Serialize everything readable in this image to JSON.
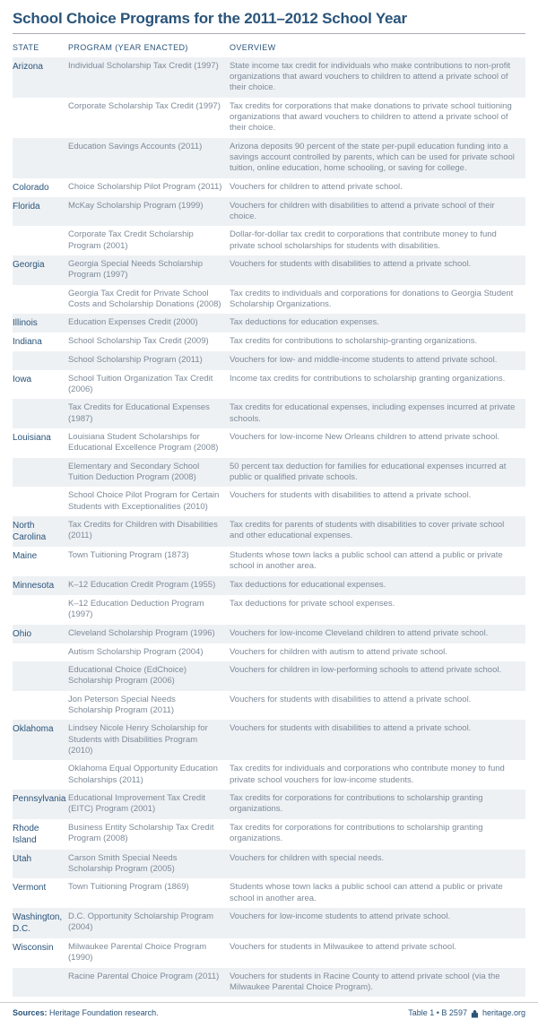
{
  "title": "School Choice Programs for the 2011–2012 School Year",
  "headers": {
    "state": "STATE",
    "program": "PROGRAM (YEAR ENACTED)",
    "overview": "OVERVIEW"
  },
  "colors": {
    "heading": "#2a547a",
    "bodytext": "#7d8a99",
    "shade": "#eef1f4"
  },
  "rows": [
    {
      "state": "Arizona",
      "shade": true,
      "program": "Individual Scholarship Tax Credit (1997)",
      "overview": "State income tax credit for individuals who make contributions to non-profit organizations that award vouchers to children to attend a private school of their choice."
    },
    {
      "state": "",
      "shade": false,
      "program": "Corporate Scholarship Tax Credit (1997)",
      "overview": "Tax credits for corporations that make donations to private school tuitioning organizations that award vouchers to children to attend a private school of their choice."
    },
    {
      "state": "",
      "shade": true,
      "program": "Education Savings Accounts (2011)",
      "overview": "Arizona deposits 90 percent of the state per-pupil education funding into a savings account controlled by parents, which can be used for private school tuition, online education, home schooling, or saving for college."
    },
    {
      "state": "Colorado",
      "shade": false,
      "program": "Choice Scholarship Pilot Program (2011)",
      "overview": "Vouchers for children to attend private school."
    },
    {
      "state": "Florida",
      "shade": true,
      "program": "McKay Scholarship Program (1999)",
      "overview": "Vouchers for children with disabilities to attend a private school of their choice."
    },
    {
      "state": "",
      "shade": false,
      "program": "Corporate Tax Credit Scholarship Program (2001)",
      "overview": "Dollar-for-dollar tax credit to corporations that contribute money to fund private school scholarships for students with disabilities."
    },
    {
      "state": "Georgia",
      "shade": true,
      "program": "Georgia Special Needs Scholarship Program (1997)",
      "overview": "Vouchers for students with disabilities to attend a private school."
    },
    {
      "state": "",
      "shade": false,
      "program": "Georgia Tax Credit for Private School Costs and Scholarship Donations (2008)",
      "overview": "Tax credits to individuals and corporations for donations to Georgia Student Scholarship Organizations."
    },
    {
      "state": "Illinois",
      "shade": true,
      "program": "Education Expenses Credit (2000)",
      "overview": "Tax deductions for education expenses."
    },
    {
      "state": "Indiana",
      "shade": false,
      "program": "School Scholarship Tax Credit (2009)",
      "overview": "Tax credits for contributions to scholarship-granting organizations."
    },
    {
      "state": "",
      "shade": true,
      "program": "School Scholarship Program (2011)",
      "overview": "Vouchers for low- and middle-income students to attend private school."
    },
    {
      "state": "Iowa",
      "shade": false,
      "program": "School Tuition Organization Tax Credit (2006)",
      "overview": "Income tax credits for contributions to scholarship granting organizations."
    },
    {
      "state": "",
      "shade": true,
      "program": "Tax Credits for Educational Expenses (1987)",
      "overview": "Tax credits for educational expenses, including expenses incurred at private schools."
    },
    {
      "state": "Louisiana",
      "shade": false,
      "program": "Louisiana Student Scholarships for Educational Excellence Program (2008)",
      "overview": "Vouchers for low-income New Orleans children to attend private school."
    },
    {
      "state": "",
      "shade": true,
      "program": "Elementary and Secondary School Tuition Deduction Program (2008)",
      "overview": "50 percent tax deduction for families for educational expenses incurred at public or qualified private schools."
    },
    {
      "state": "",
      "shade": false,
      "program": "School Choice Pilot Program for Certain Students with Exceptionalities (2010)",
      "overview": "Vouchers for students with disabilities to attend a private school."
    },
    {
      "state": "North Carolina",
      "shade": true,
      "program": "Tax Credits for Children with Disabilities (2011)",
      "overview": "Tax credits for parents of students with disabilities to cover private school and other educational expenses."
    },
    {
      "state": "Maine",
      "shade": false,
      "program": "Town Tuitioning Program (1873)",
      "overview": "Students whose town lacks a public school can attend a public or private school in another area."
    },
    {
      "state": "Minnesota",
      "shade": true,
      "program": "K–12 Education Credit Program (1955)",
      "overview": "Tax deductions for educational expenses."
    },
    {
      "state": "",
      "shade": false,
      "program": "K–12 Education Deduction Program (1997)",
      "overview": "Tax deductions for private school expenses."
    },
    {
      "state": "Ohio",
      "shade": true,
      "program": "Cleveland Scholarship Program (1996)",
      "overview": "Vouchers for low-income Cleveland children to attend private school."
    },
    {
      "state": "",
      "shade": false,
      "program": "Autism Scholarship Program (2004)",
      "overview": "Vouchers for children with autism to attend private school."
    },
    {
      "state": "",
      "shade": true,
      "program": "Educational Choice (EdChoice) Scholarship Program (2006)",
      "overview": "Vouchers for children in low-performing schools to attend private school."
    },
    {
      "state": "",
      "shade": false,
      "program": "Jon Peterson Special Needs Scholarship Program (2011)",
      "overview": "Vouchers for students with disabilities to attend a private school."
    },
    {
      "state": "Oklahoma",
      "shade": true,
      "program": "Lindsey Nicole Henry Scholarship for Students with Disabilities Program (2010)",
      "overview": "Vouchers for students with disabilities to attend a private school."
    },
    {
      "state": "",
      "shade": false,
      "program": "Oklahoma Equal Opportunity Education Scholarships (2011)",
      "overview": "Tax credits for individuals and corporations who contribute money to fund private school vouchers for low-income students."
    },
    {
      "state": "Pennsylvania",
      "shade": true,
      "program": "Educational Improvement Tax Credit (EITC) Program (2001)",
      "overview": "Tax credits for corporations for contributions to scholarship granting organizations."
    },
    {
      "state": "Rhode Island",
      "shade": false,
      "program": "Business Entity Scholarship Tax Credit Program (2008)",
      "overview": "Tax credits for corporations for contributions to scholarship granting organizations."
    },
    {
      "state": "Utah",
      "shade": true,
      "program": "Carson Smith Special Needs Scholarship Program (2005)",
      "overview": "Vouchers for children with special needs."
    },
    {
      "state": "Vermont",
      "shade": false,
      "program": "Town Tuitioning Program (1869)",
      "overview": "Students whose town lacks a public school can attend a public or private school in another area."
    },
    {
      "state": "Washington, D.C.",
      "shade": true,
      "program": "D.C. Opportunity Scholarship Program (2004)",
      "overview": "Vouchers for low-income students to attend private school."
    },
    {
      "state": "Wisconsin",
      "shade": false,
      "program": "Milwaukee Parental Choice Program (1990)",
      "overview": "Vouchers for students in Milwaukee to attend private school."
    },
    {
      "state": "",
      "shade": true,
      "program": "Racine Parental Choice Program (2011)",
      "overview": "Vouchers for students in Racine County to attend private school (via the Milwaukee Parental Choice Program)."
    }
  ],
  "footer": {
    "sources_label": "Sources:",
    "sources_text": "Heritage Foundation research.",
    "table_ref": "Table 1 • B 2597",
    "site": "heritage.org"
  }
}
